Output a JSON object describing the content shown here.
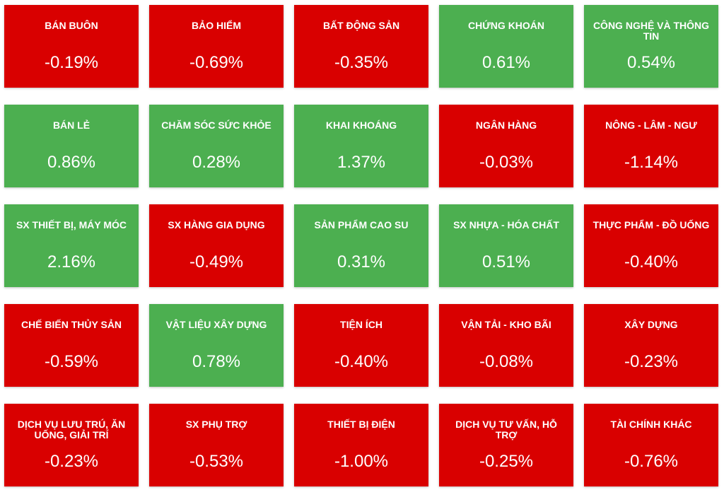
{
  "colors": {
    "negative": "#d90000",
    "positive": "#4caf50"
  },
  "tiles": [
    {
      "name": "BÁN BUÔN",
      "value": "-0.19%",
      "trend": "negative"
    },
    {
      "name": "BẢO HIỂM",
      "value": "-0.69%",
      "trend": "negative"
    },
    {
      "name": "BẤT ĐỘNG SẢN",
      "value": "-0.35%",
      "trend": "negative"
    },
    {
      "name": "CHỨNG KHOÁN",
      "value": "0.61%",
      "trend": "positive"
    },
    {
      "name": "CÔNG NGHỆ VÀ THÔNG TIN",
      "value": "0.54%",
      "trend": "positive"
    },
    {
      "name": "BÁN LẺ",
      "value": "0.86%",
      "trend": "positive"
    },
    {
      "name": "CHĂM SÓC SỨC KHỎE",
      "value": "0.28%",
      "trend": "positive"
    },
    {
      "name": "KHAI KHOÁNG",
      "value": "1.37%",
      "trend": "positive"
    },
    {
      "name": "NGÂN HÀNG",
      "value": "-0.03%",
      "trend": "negative"
    },
    {
      "name": "NÔNG - LÂM - NGƯ",
      "value": "-1.14%",
      "trend": "negative"
    },
    {
      "name": "SX THIẾT BỊ, MÁY MÓC",
      "value": "2.16%",
      "trend": "positive"
    },
    {
      "name": "SX HÀNG GIA DỤNG",
      "value": "-0.49%",
      "trend": "negative"
    },
    {
      "name": "SẢN PHẨM CAO SU",
      "value": "0.31%",
      "trend": "positive"
    },
    {
      "name": "SX NHỰA - HÓA CHẤT",
      "value": "0.51%",
      "trend": "positive"
    },
    {
      "name": "THỰC PHẨM - ĐỒ UỐNG",
      "value": "-0.40%",
      "trend": "negative"
    },
    {
      "name": "CHẾ BIẾN THỦY SẢN",
      "value": "-0.59%",
      "trend": "negative"
    },
    {
      "name": "VẬT LIỆU XÂY DỰNG",
      "value": "0.78%",
      "trend": "positive"
    },
    {
      "name": "TIỆN ÍCH",
      "value": "-0.40%",
      "trend": "negative"
    },
    {
      "name": "VẬN TẢI - KHO BÃI",
      "value": "-0.08%",
      "trend": "negative"
    },
    {
      "name": "XÂY DỰNG",
      "value": "-0.23%",
      "trend": "negative"
    },
    {
      "name": "DỊCH VỤ LƯU TRÚ, ĂN UỐNG, GIẢI TRÍ",
      "value": "-0.23%",
      "trend": "negative"
    },
    {
      "name": "SX PHỤ TRỢ",
      "value": "-0.53%",
      "trend": "negative"
    },
    {
      "name": "THIẾT BỊ ĐIỆN",
      "value": "-1.00%",
      "trend": "negative"
    },
    {
      "name": "DỊCH VỤ TƯ VẤN, HỖ TRỢ",
      "value": "-0.25%",
      "trend": "negative"
    },
    {
      "name": "TÀI CHÍNH KHÁC",
      "value": "-0.76%",
      "trend": "negative"
    }
  ]
}
